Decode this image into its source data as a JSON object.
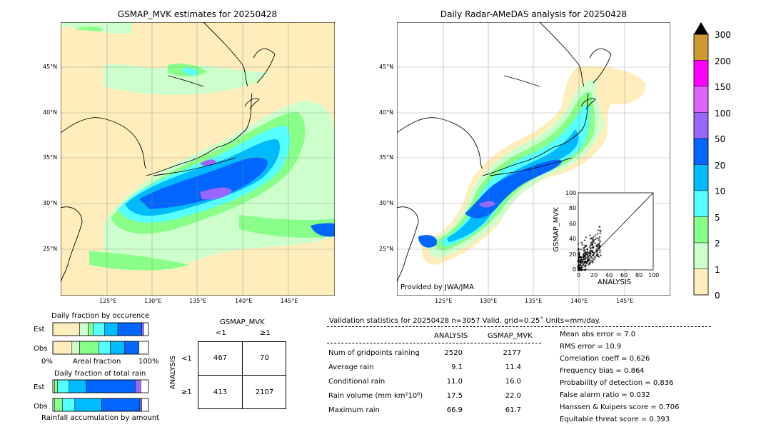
{
  "left_map": {
    "title": "GSMAP_MVK estimates for 20250428",
    "lat_labels": [
      "45°N",
      "40°N",
      "35°N",
      "30°N",
      "25°N"
    ],
    "lon_labels": [
      "125°E",
      "130°E",
      "135°E",
      "140°E",
      "145°E"
    ]
  },
  "right_map": {
    "title": "Daily Radar-AMeDAS analysis for 20250428",
    "lat_labels": [
      "45°N",
      "40°N",
      "35°N",
      "30°N",
      "25°N"
    ],
    "lon_labels": [
      "125°E",
      "130°E",
      "135°E",
      "140°E",
      "145°E"
    ],
    "credit": "Provided by JWA/JMA"
  },
  "colorbar": {
    "labels": [
      "300",
      "200",
      "150",
      "100",
      "50",
      "20",
      "10",
      "5",
      "2",
      "1",
      "0"
    ],
    "colors": [
      "#cc9933",
      "#ff00ff",
      "#dd66ff",
      "#9966ff",
      "#0066ff",
      "#00bbff",
      "#55ffff",
      "#88ff88",
      "#ccffcc",
      "#ffeebb"
    ]
  },
  "scatter": {
    "xlabel": "ANALYSIS",
    "ylabel": "GSMAP_MVK",
    "ticks": [
      "0",
      "20",
      "40",
      "60",
      "80",
      "100"
    ]
  },
  "occurrence": {
    "title": "Daily fraction by occurence",
    "rows": [
      "Est",
      "Obs"
    ],
    "axis": [
      "0%",
      "Areal fraction",
      "100%"
    ]
  },
  "total_rain": {
    "title": "Daily fraction of total rain",
    "rows": [
      "Est",
      "Obs"
    ],
    "caption": "Rainfall accumulation by amount"
  },
  "contingency": {
    "col_title": "GSMAP_MVK",
    "row_title": "ANALYSIS",
    "col_labels": [
      "<1",
      "≥1"
    ],
    "row_labels": [
      "<1",
      "≥1"
    ],
    "cells": [
      [
        "467",
        "70"
      ],
      [
        "413",
        "2107"
      ]
    ]
  },
  "validation": {
    "header": "Validation statistics for 20250428  n=3057 Valid. grid=0.25˚ Units=mm/day.",
    "col_headers": [
      "ANALYSIS",
      "GSMAP_MVK"
    ],
    "rows": [
      {
        "label": "Num of gridpoints raining",
        "a": "2520",
        "g": "2177"
      },
      {
        "label": "Average rain",
        "a": "9.1",
        "g": "11.4"
      },
      {
        "label": "Conditional rain",
        "a": "11.0",
        "g": "16.0"
      },
      {
        "label": "Rain volume (mm km²10⁶)",
        "a": "17.5",
        "g": "22.0"
      },
      {
        "label": "Maximum rain",
        "a": "66.9",
        "g": "61.7"
      }
    ],
    "scores": [
      "Mean abs error =    7.0",
      "RMS error =   10.9",
      "Correlation coeff =  0.626",
      "Frequency bias =  0.864",
      "Probability of detection =  0.836",
      "False alarm ratio =  0.032",
      "Hanssen & Kuipers score =  0.706",
      "Equitable threat score =  0.393"
    ]
  },
  "chart_data": [
    {
      "type": "heatmap",
      "title": "GSMAP_MVK estimates for 20250428",
      "xlabel": "",
      "ylabel": "",
      "x_ticks": [
        "125°E",
        "130°E",
        "135°E",
        "140°E",
        "145°E"
      ],
      "y_ticks": [
        "45°N",
        "40°N",
        "35°N",
        "30°N",
        "25°N"
      ],
      "legend_levels": [
        0,
        1,
        2,
        5,
        10,
        20,
        50,
        100,
        150,
        200,
        300
      ]
    },
    {
      "type": "heatmap",
      "title": "Daily Radar-AMeDAS analysis for 20250428",
      "xlabel": "",
      "ylabel": "",
      "x_ticks": [
        "125°E",
        "130°E",
        "135°E",
        "140°E",
        "145°E"
      ],
      "y_ticks": [
        "45°N",
        "40°N",
        "35°N",
        "30°N",
        "25°N"
      ],
      "legend_levels": [
        0,
        1,
        2,
        5,
        10,
        20,
        50,
        100,
        150,
        200,
        300
      ]
    },
    {
      "type": "scatter",
      "xlabel": "ANALYSIS",
      "ylabel": "GSMAP_MVK",
      "xlim": [
        0,
        100
      ],
      "ylim": [
        0,
        100
      ],
      "series": [
        {
          "values": []
        }
      ]
    },
    {
      "type": "bar",
      "title": "Daily fraction by occurence",
      "categories": [
        "Est",
        "Obs"
      ],
      "series": [
        {
          "color": "#ffeebb",
          "values": [
            0.28,
            0.2
          ]
        },
        {
          "color": "#ccffcc",
          "values": [
            0.09,
            0.08
          ]
        },
        {
          "color": "#88ff88",
          "values": [
            0.05,
            0.2
          ]
        },
        {
          "color": "#55ffff",
          "values": [
            0.12,
            0.12
          ]
        },
        {
          "color": "#00bbff",
          "values": [
            0.14,
            0.15
          ]
        },
        {
          "color": "#0066ff",
          "values": [
            0.25,
            0.15
          ]
        },
        {
          "color": "#9966ff",
          "values": [
            0.02,
            0.0
          ]
        }
      ]
    },
    {
      "type": "bar",
      "title": "Daily fraction of total rain",
      "categories": [
        "Est",
        "Obs"
      ],
      "series": [
        {
          "color": "#ccffcc",
          "values": [
            0.02,
            0.02
          ]
        },
        {
          "color": "#88ff88",
          "values": [
            0.03,
            0.08
          ]
        },
        {
          "color": "#55ffff",
          "values": [
            0.12,
            0.13
          ]
        },
        {
          "color": "#00bbff",
          "values": [
            0.18,
            0.28
          ]
        },
        {
          "color": "#0066ff",
          "values": [
            0.51,
            0.4
          ]
        },
        {
          "color": "#9966ff",
          "values": [
            0.06,
            0.02
          ]
        }
      ]
    }
  ]
}
